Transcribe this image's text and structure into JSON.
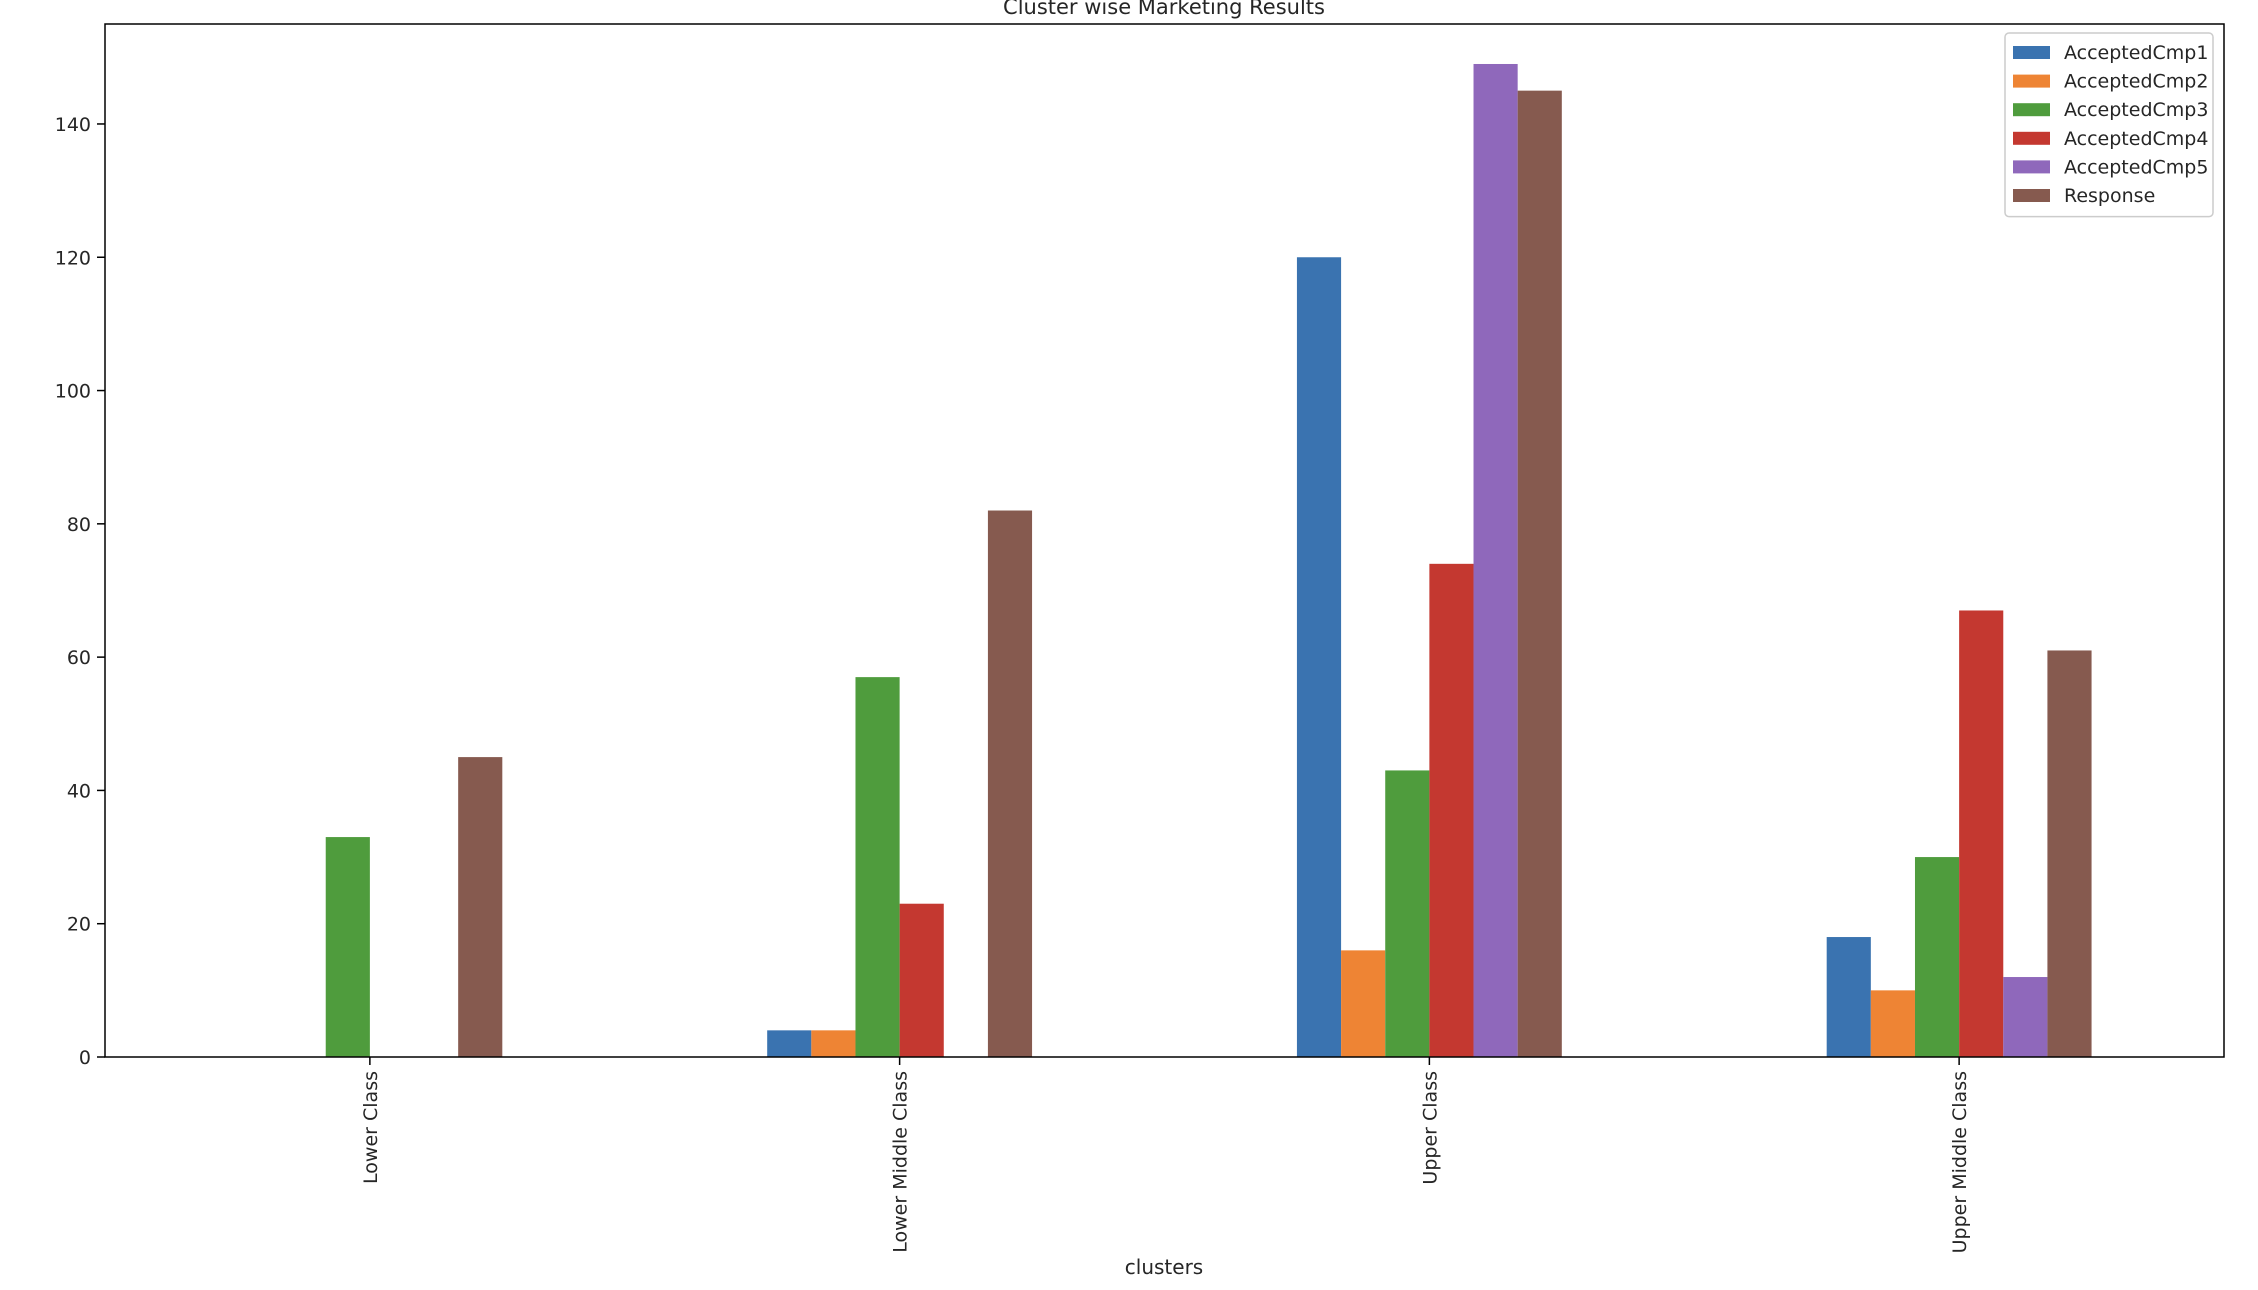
{
  "chart_data": {
    "type": "bar",
    "title": "Cluster wise Marketing Results",
    "xlabel": "clusters",
    "ylabel": "",
    "categories": [
      "Lower Class",
      "Lower Middle Class",
      "Upper Class",
      "Upper Middle Class"
    ],
    "series": [
      {
        "name": "AcceptedCmp1",
        "color": "#3a73b0",
        "values": [
          0,
          4,
          120,
          18
        ]
      },
      {
        "name": "AcceptedCmp2",
        "color": "#ee8434",
        "values": [
          0,
          4,
          16,
          10
        ]
      },
      {
        "name": "AcceptedCmp3",
        "color": "#4f9c3d",
        "values": [
          33,
          57,
          43,
          30
        ]
      },
      {
        "name": "AcceptedCmp4",
        "color": "#c43830",
        "values": [
          0,
          23,
          74,
          67
        ]
      },
      {
        "name": "AcceptedCmp5",
        "color": "#8f68bb",
        "values": [
          0,
          0,
          149,
          12
        ]
      },
      {
        "name": "Response",
        "color": "#865a4f",
        "values": [
          45,
          82,
          145,
          61
        ]
      }
    ],
    "ylim": [
      0,
      155
    ],
    "yticks": [
      "0",
      "20",
      "40",
      "60",
      "80",
      "100",
      "120",
      "140"
    ],
    "grid": false,
    "legend_position": "top-right"
  }
}
